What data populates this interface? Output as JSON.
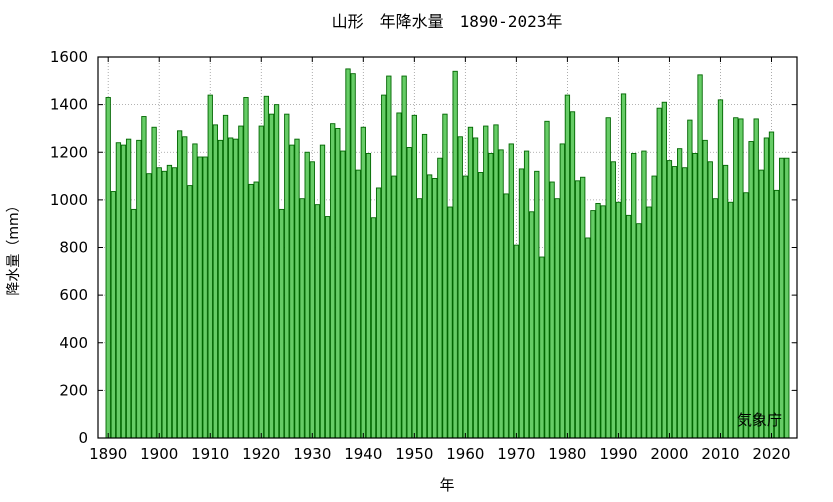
{
  "chart_data": {
    "type": "bar",
    "title": "山形　年降水量　1890-2023年",
    "xlabel": "年",
    "ylabel": "降水量（mm）",
    "source_note": "気象庁",
    "xlim": [
      1888,
      2025
    ],
    "ylim": [
      0,
      1600
    ],
    "x_ticks": [
      1890,
      1900,
      1910,
      1920,
      1930,
      1940,
      1950,
      1960,
      1970,
      1980,
      1990,
      2000,
      2010,
      2020
    ],
    "y_ticks": [
      0,
      200,
      400,
      600,
      800,
      1000,
      1200,
      1400,
      1600
    ],
    "grid": true,
    "colors": {
      "bar_fill": "#66cc66",
      "bar_stroke": "#006600",
      "grid": "#999999"
    },
    "x": [
      1890,
      1891,
      1892,
      1893,
      1894,
      1895,
      1896,
      1897,
      1898,
      1899,
      1900,
      1901,
      1902,
      1903,
      1904,
      1905,
      1906,
      1907,
      1908,
      1909,
      1910,
      1911,
      1912,
      1913,
      1914,
      1915,
      1916,
      1917,
      1918,
      1919,
      1920,
      1921,
      1922,
      1923,
      1924,
      1925,
      1926,
      1927,
      1928,
      1929,
      1930,
      1931,
      1932,
      1933,
      1934,
      1935,
      1936,
      1937,
      1938,
      1939,
      1940,
      1941,
      1942,
      1943,
      1944,
      1945,
      1946,
      1947,
      1948,
      1949,
      1950,
      1951,
      1952,
      1953,
      1954,
      1955,
      1956,
      1957,
      1958,
      1959,
      1960,
      1961,
      1962,
      1963,
      1964,
      1965,
      1966,
      1967,
      1968,
      1969,
      1970,
      1971,
      1972,
      1973,
      1974,
      1975,
      1976,
      1977,
      1978,
      1979,
      1980,
      1981,
      1982,
      1983,
      1984,
      1985,
      1986,
      1987,
      1988,
      1989,
      1990,
      1991,
      1992,
      1993,
      1994,
      1995,
      1996,
      1997,
      1998,
      1999,
      2000,
      2001,
      2002,
      2003,
      2004,
      2005,
      2006,
      2007,
      2008,
      2009,
      2010,
      2011,
      2012,
      2013,
      2014,
      2015,
      2016,
      2017,
      2018,
      2019,
      2020,
      2021,
      2022,
      2023
    ],
    "values": [
      1430,
      1035,
      1240,
      1230,
      1255,
      960,
      1250,
      1350,
      1110,
      1305,
      1135,
      1120,
      1145,
      1135,
      1290,
      1265,
      1060,
      1235,
      1180,
      1180,
      1440,
      1315,
      1250,
      1355,
      1260,
      1255,
      1310,
      1430,
      1065,
      1075,
      1310,
      1435,
      1360,
      1400,
      960,
      1360,
      1230,
      1255,
      1005,
      1200,
      1160,
      980,
      1230,
      930,
      1320,
      1300,
      1205,
      1550,
      1530,
      1125,
      1305,
      1195,
      925,
      1050,
      1440,
      1520,
      1100,
      1365,
      1520,
      1220,
      1355,
      1005,
      1275,
      1105,
      1090,
      1175,
      1360,
      970,
      1540,
      1265,
      1100,
      1305,
      1260,
      1115,
      1310,
      1195,
      1315,
      1210,
      1025,
      1235,
      810,
      1130,
      1205,
      950,
      1120,
      760,
      1330,
      1075,
      1005,
      1235,
      1440,
      1370,
      1080,
      1095,
      840,
      955,
      985,
      975,
      1345,
      1160,
      990,
      1445,
      935,
      1195,
      900,
      1205,
      970,
      1100,
      1385,
      1410,
      1165,
      1140,
      1215,
      1135,
      1335,
      1195,
      1525,
      1250,
      1160,
      1005,
      1420,
      1145,
      990,
      1345,
      1340,
      1030,
      1245,
      1340,
      1125,
      1260,
      1285,
      1040,
      1175,
      1175
    ]
  }
}
